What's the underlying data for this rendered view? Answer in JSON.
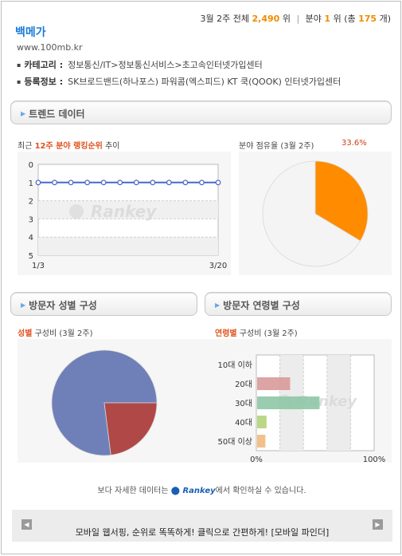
{
  "header": {
    "rank_week": "3월 2주",
    "total_label": "전체",
    "total_rank": "2,490",
    "rank_suffix": "위",
    "category_label": "분야",
    "category_rank": "1",
    "count_prefix": "위 (총",
    "category_total": "175",
    "count_suffix": "개)"
  },
  "site": {
    "name": "백메가",
    "url": "www.100mb.kr",
    "category_key": "카테고리 :",
    "category_value": "정보통신/IT>정보통신서비스>초고속인터넷가입센터",
    "registration_key": "등록정보 :",
    "registration_value": "SK브로드밴드(하나포스) 파워콤(엑스피드) KT 쿡(QOOK) 인터넷가입센터"
  },
  "sections": {
    "trend": "트렌드 데이터",
    "gender": "방문자 성별 구성",
    "age": "방문자 연령별 구성"
  },
  "labels": {
    "trend_prefix": "최근",
    "trend_em": "12주 분야 랭킹순위",
    "trend_suffix": "추이",
    "share_title": "분야 점유율 (3월 2주)",
    "share_pct": "33.6%",
    "gender_em": "성별",
    "gender_suffix": "구성비 (3월 2주)",
    "age_em": "연령별",
    "age_suffix": "구성비 (3월 2주)",
    "watermark": "Rankey"
  },
  "footer": {
    "note_prefix": "보다 자세한 데이터는",
    "note_brand": "Rankey",
    "note_suffix": "에서 확인하실 수 있습니다.",
    "mobile_msg": "모바일 웹서핑, 순위로 똑똑하게! 클릭으로 간편하게! [모바일 파인더]"
  },
  "colors": {
    "accent_orange": "#f08c00",
    "link_blue": "#1a7bd6",
    "share_slice": "#ff8c00",
    "male": "#6f7fb8",
    "female": "#b04848"
  },
  "chart_data": [
    {
      "type": "line",
      "title": "최근 12주 분야 랭킹순위 추이",
      "x_tick_labels": [
        "1/3",
        "3/20"
      ],
      "y_tick_labels": [
        "0",
        "1",
        "2",
        "3",
        "4",
        "5"
      ],
      "ylim": [
        0,
        5
      ],
      "y_inverted": true,
      "series": [
        {
          "values": [
            1,
            1,
            1,
            1,
            1,
            1,
            1,
            1,
            1,
            1,
            1,
            1
          ]
        }
      ]
    },
    {
      "type": "pie",
      "title": "분야 점유율 (3월 2주)",
      "values": [
        33.6,
        66.4
      ],
      "colors": [
        "#ff8c00",
        "#f4f4f4"
      ]
    },
    {
      "type": "pie",
      "title": "성별 구성비 (3월 2주)",
      "values": [
        77,
        23
      ],
      "colors": [
        "#6f7fb8",
        "#b04848"
      ]
    },
    {
      "type": "bar",
      "orientation": "horizontal",
      "title": "연령별 구성비 (3월 2주)",
      "categories": [
        "10대 이하",
        "20대",
        "30대",
        "40대",
        "50대 이상"
      ],
      "values": [
        0,
        28,
        53,
        8,
        7
      ],
      "colors": [
        "#cccccc",
        "#d99a9a",
        "#8fc7a7",
        "#b2d37a",
        "#f2ba7a"
      ],
      "x_tick_labels": [
        "0%",
        "100%"
      ],
      "xlim": [
        0,
        100
      ]
    }
  ]
}
